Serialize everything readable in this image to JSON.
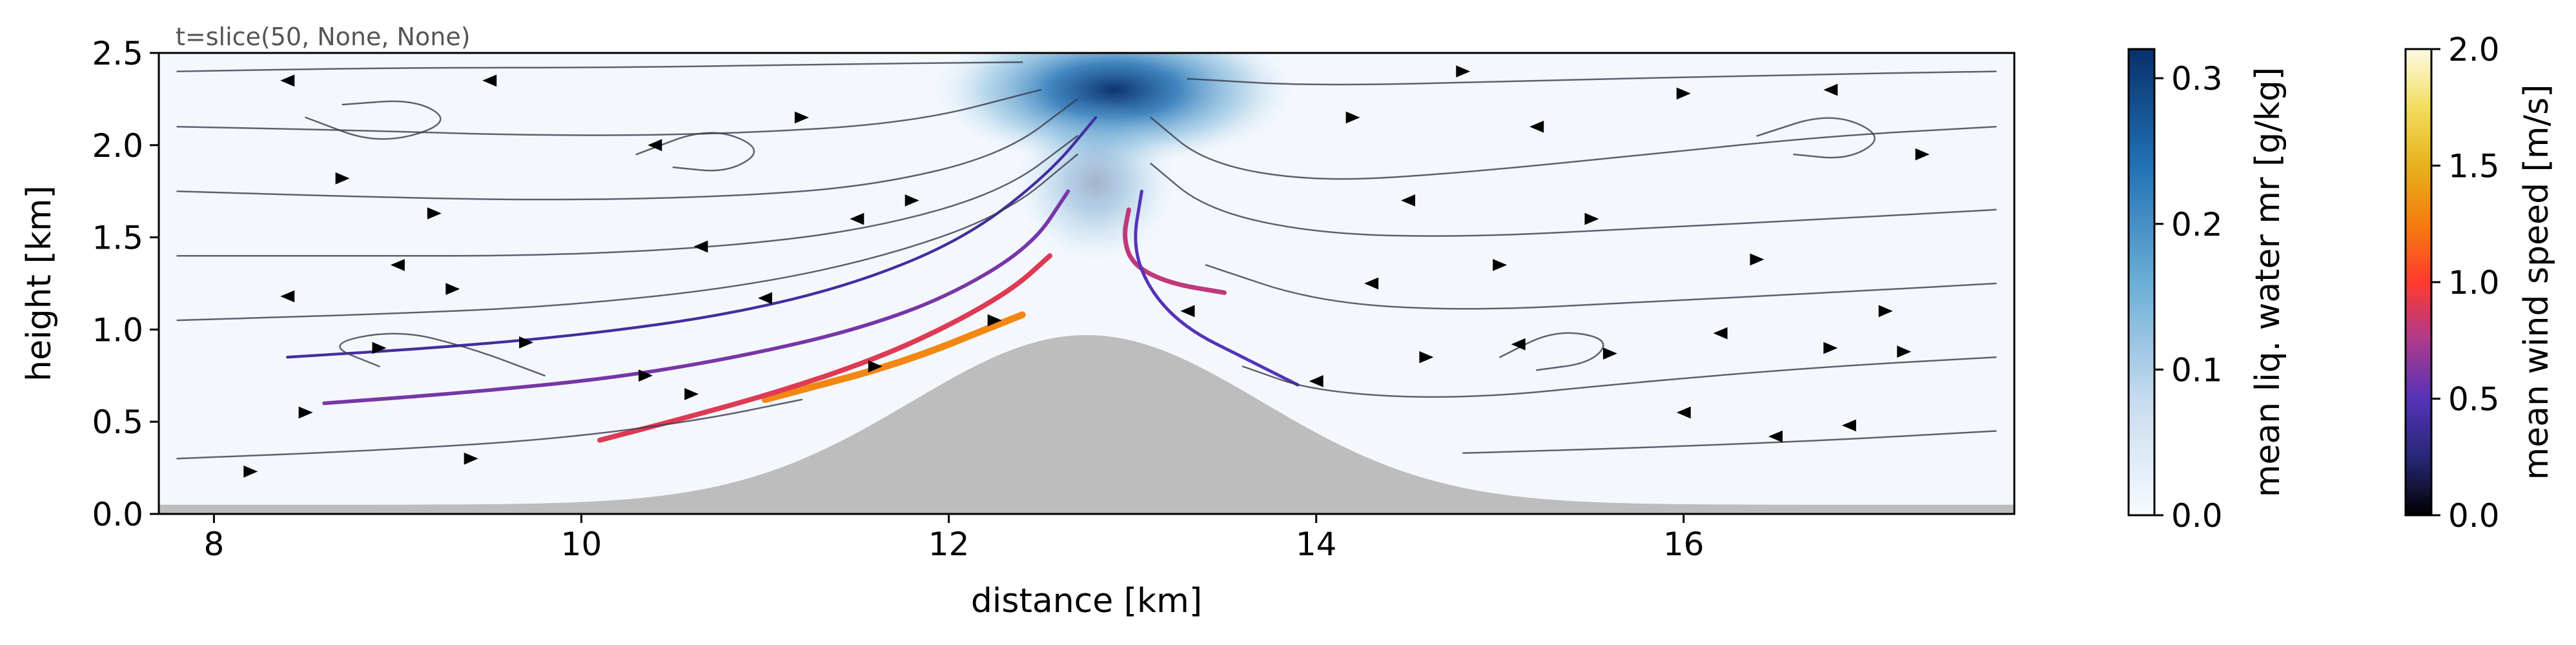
{
  "chart_data": {
    "type": "streamplot",
    "annotation": "t=slice(50, None, None)",
    "xlabel": "distance [km]",
    "ylabel": "height [km]",
    "xlim": [
      7.7,
      17.8
    ],
    "ylim": [
      0.0,
      2.5
    ],
    "xticks": [
      8,
      10,
      12,
      14,
      16
    ],
    "xtick_labels": [
      "8",
      "10",
      "12",
      "14",
      "16"
    ],
    "yticks": [
      0.0,
      0.5,
      1.0,
      1.5,
      2.0,
      2.5
    ],
    "ytick_labels": [
      "0.0",
      "0.5",
      "1.0",
      "1.5",
      "2.0",
      "2.5"
    ],
    "terrain": {
      "color": "#bdbdbd",
      "peak_x_km": 12.75,
      "peak_height_km": 0.97,
      "halfwidth_km": 1.35,
      "base_height_km": 0.05
    },
    "cloud": {
      "colormap": "Blues",
      "center_x_km": 12.9,
      "center_y_km": 2.3,
      "max_value": 0.32
    },
    "colorbars": [
      {
        "label": "mean liq. water mr [g/kg]",
        "colormap": "Blues",
        "range": [
          0.0,
          0.32
        ],
        "ticks": [
          0.0,
          0.1,
          0.2,
          0.3
        ],
        "tick_labels": [
          "0.0",
          "0.1",
          "0.2",
          "0.3"
        ]
      },
      {
        "label": "mean wind speed [m/s]",
        "colormap": "CMRmap",
        "range": [
          0.0,
          2.0
        ],
        "ticks": [
          0.0,
          0.5,
          1.0,
          1.5,
          2.0
        ],
        "tick_labels": [
          "0.0",
          "0.5",
          "1.0",
          "1.5",
          "2.0"
        ]
      }
    ],
    "streamlines": [
      {
        "speed": 1.3,
        "points": [
          [
            11.0,
            0.62
          ],
          [
            11.3,
            0.7
          ],
          [
            11.6,
            0.78
          ],
          [
            11.9,
            0.88
          ],
          [
            12.15,
            0.98
          ],
          [
            12.4,
            1.08
          ]
        ]
      },
      {
        "speed": 0.9,
        "points": [
          [
            10.1,
            0.4
          ],
          [
            10.6,
            0.53
          ],
          [
            11.1,
            0.67
          ],
          [
            11.6,
            0.84
          ],
          [
            12.0,
            1.02
          ],
          [
            12.35,
            1.22
          ],
          [
            12.55,
            1.4
          ]
        ]
      },
      {
        "speed": 0.6,
        "points": [
          [
            8.6,
            0.6
          ],
          [
            9.4,
            0.66
          ],
          [
            10.2,
            0.74
          ],
          [
            10.9,
            0.86
          ],
          [
            11.5,
            1.0
          ],
          [
            12.0,
            1.18
          ],
          [
            12.45,
            1.45
          ],
          [
            12.65,
            1.75
          ]
        ]
      },
      {
        "speed": 0.4,
        "points": [
          [
            8.4,
            0.85
          ],
          [
            9.2,
            0.9
          ],
          [
            10.0,
            0.97
          ],
          [
            10.8,
            1.08
          ],
          [
            11.5,
            1.25
          ],
          [
            12.1,
            1.5
          ],
          [
            12.55,
            1.85
          ],
          [
            12.8,
            2.15
          ]
        ]
      },
      {
        "speed": 0.8,
        "points": [
          [
            13.5,
            1.2
          ],
          [
            13.2,
            1.25
          ],
          [
            13.0,
            1.35
          ],
          [
            12.95,
            1.5
          ],
          [
            12.98,
            1.65
          ]
        ]
      },
      {
        "speed": 0.5,
        "points": [
          [
            13.9,
            0.7
          ],
          [
            13.6,
            0.85
          ],
          [
            13.3,
            1.0
          ],
          [
            13.1,
            1.2
          ],
          [
            13.0,
            1.45
          ],
          [
            13.05,
            1.75
          ]
        ]
      },
      {
        "speed": 0.15,
        "points": [
          [
            7.8,
            1.75
          ],
          [
            8.8,
            1.72
          ],
          [
            9.8,
            1.7
          ],
          [
            10.8,
            1.72
          ],
          [
            11.6,
            1.78
          ],
          [
            12.3,
            1.95
          ],
          [
            12.7,
            2.25
          ]
        ]
      },
      {
        "speed": 0.15,
        "points": [
          [
            7.8,
            1.4
          ],
          [
            8.8,
            1.4
          ],
          [
            9.8,
            1.4
          ],
          [
            10.8,
            1.45
          ],
          [
            11.6,
            1.55
          ],
          [
            12.3,
            1.75
          ],
          [
            12.7,
            2.05
          ]
        ]
      },
      {
        "speed": 0.15,
        "points": [
          [
            7.8,
            1.05
          ],
          [
            8.8,
            1.08
          ],
          [
            9.8,
            1.12
          ],
          [
            10.8,
            1.22
          ],
          [
            11.6,
            1.38
          ],
          [
            12.3,
            1.62
          ],
          [
            12.7,
            1.95
          ]
        ]
      },
      {
        "speed": 0.15,
        "points": [
          [
            7.8,
            0.3
          ],
          [
            8.8,
            0.34
          ],
          [
            9.8,
            0.4
          ],
          [
            10.6,
            0.5
          ],
          [
            11.2,
            0.62
          ]
        ]
      },
      {
        "speed": 0.15,
        "points": [
          [
            7.8,
            2.1
          ],
          [
            8.8,
            2.08
          ],
          [
            9.8,
            2.05
          ],
          [
            10.8,
            2.06
          ],
          [
            11.8,
            2.12
          ],
          [
            12.5,
            2.3
          ]
        ]
      },
      {
        "speed": 0.15,
        "points": [
          [
            7.8,
            2.4
          ],
          [
            9.0,
            2.42
          ],
          [
            10.2,
            2.42
          ],
          [
            11.4,
            2.44
          ],
          [
            12.4,
            2.45
          ]
        ]
      },
      {
        "speed": 0.15,
        "points": [
          [
            17.7,
            2.1
          ],
          [
            16.8,
            2.05
          ],
          [
            15.8,
            1.95
          ],
          [
            14.8,
            1.85
          ],
          [
            14.0,
            1.8
          ],
          [
            13.4,
            1.9
          ],
          [
            13.1,
            2.15
          ]
        ]
      },
      {
        "speed": 0.15,
        "points": [
          [
            17.7,
            1.65
          ],
          [
            16.8,
            1.6
          ],
          [
            15.8,
            1.55
          ],
          [
            14.8,
            1.5
          ],
          [
            14.0,
            1.52
          ],
          [
            13.4,
            1.65
          ],
          [
            13.1,
            1.9
          ]
        ]
      },
      {
        "speed": 0.15,
        "points": [
          [
            17.7,
            1.25
          ],
          [
            16.8,
            1.2
          ],
          [
            15.8,
            1.15
          ],
          [
            14.8,
            1.1
          ],
          [
            14.0,
            1.15
          ],
          [
            13.4,
            1.35
          ]
        ]
      },
      {
        "speed": 0.15,
        "points": [
          [
            17.7,
            0.85
          ],
          [
            16.8,
            0.8
          ],
          [
            15.8,
            0.72
          ],
          [
            14.8,
            0.62
          ],
          [
            14.0,
            0.66
          ],
          [
            13.6,
            0.8
          ]
        ]
      },
      {
        "speed": 0.15,
        "points": [
          [
            17.7,
            0.45
          ],
          [
            16.8,
            0.4
          ],
          [
            15.8,
            0.36
          ],
          [
            14.8,
            0.33
          ]
        ]
      },
      {
        "speed": 0.15,
        "points": [
          [
            17.7,
            2.4
          ],
          [
            16.5,
            2.38
          ],
          [
            15.2,
            2.35
          ],
          [
            14.0,
            2.32
          ],
          [
            13.3,
            2.36
          ]
        ]
      },
      {
        "speed": 0.15,
        "points": [
          [
            8.5,
            2.15
          ],
          [
            8.9,
            2.0
          ],
          [
            9.3,
            2.12
          ],
          [
            9.1,
            2.25
          ],
          [
            8.7,
            2.22
          ]
        ]
      },
      {
        "speed": 0.15,
        "points": [
          [
            9.8,
            0.75
          ],
          [
            9.4,
            0.9
          ],
          [
            9.0,
            1.0
          ],
          [
            8.6,
            0.92
          ],
          [
            8.9,
            0.8
          ]
        ]
      },
      {
        "speed": 0.15,
        "points": [
          [
            15.0,
            0.85
          ],
          [
            15.3,
            1.0
          ],
          [
            15.6,
            0.95
          ],
          [
            15.5,
            0.82
          ],
          [
            15.2,
            0.78
          ]
        ]
      },
      {
        "speed": 0.15,
        "points": [
          [
            16.4,
            2.05
          ],
          [
            16.8,
            2.18
          ],
          [
            17.1,
            2.05
          ],
          [
            16.9,
            1.92
          ],
          [
            16.6,
            1.95
          ]
        ]
      },
      {
        "speed": 0.15,
        "points": [
          [
            10.3,
            1.95
          ],
          [
            10.7,
            2.1
          ],
          [
            11.0,
            1.98
          ],
          [
            10.8,
            1.85
          ],
          [
            10.5,
            1.88
          ]
        ]
      }
    ],
    "arrows": [
      {
        "x": 8.2,
        "y": 0.23,
        "dir": 1
      },
      {
        "x": 8.5,
        "y": 0.55,
        "dir": 1
      },
      {
        "x": 8.9,
        "y": 0.9,
        "dir": 1
      },
      {
        "x": 9.4,
        "y": 0.3,
        "dir": 1
      },
      {
        "x": 9.3,
        "y": 1.22,
        "dir": 1
      },
      {
        "x": 9.7,
        "y": 0.93,
        "dir": 1
      },
      {
        "x": 8.4,
        "y": 1.18,
        "dir": -1
      },
      {
        "x": 9.0,
        "y": 1.35,
        "dir": -1
      },
      {
        "x": 9.2,
        "y": 1.63,
        "dir": 1
      },
      {
        "x": 8.7,
        "y": 1.82,
        "dir": 1
      },
      {
        "x": 9.5,
        "y": 2.35,
        "dir": -1
      },
      {
        "x": 8.4,
        "y": 2.35,
        "dir": -1
      },
      {
        "x": 10.6,
        "y": 0.65,
        "dir": 1
      },
      {
        "x": 10.35,
        "y": 0.75,
        "dir": 1
      },
      {
        "x": 10.65,
        "y": 1.45,
        "dir": -1
      },
      {
        "x": 11.0,
        "y": 1.17,
        "dir": -1
      },
      {
        "x": 11.5,
        "y": 1.6,
        "dir": -1
      },
      {
        "x": 10.4,
        "y": 2.0,
        "dir": -1
      },
      {
        "x": 11.2,
        "y": 2.15,
        "dir": 1
      },
      {
        "x": 11.8,
        "y": 1.7,
        "dir": 1
      },
      {
        "x": 11.6,
        "y": 0.8,
        "dir": 1
      },
      {
        "x": 12.25,
        "y": 1.05,
        "dir": 1
      },
      {
        "x": 14.0,
        "y": 0.72,
        "dir": -1
      },
      {
        "x": 13.3,
        "y": 1.1,
        "dir": -1
      },
      {
        "x": 14.6,
        "y": 0.85,
        "dir": 1
      },
      {
        "x": 15.1,
        "y": 0.92,
        "dir": -1
      },
      {
        "x": 15.6,
        "y": 0.87,
        "dir": 1
      },
      {
        "x": 16.2,
        "y": 0.98,
        "dir": -1
      },
      {
        "x": 16.8,
        "y": 0.9,
        "dir": 1
      },
      {
        "x": 17.2,
        "y": 0.88,
        "dir": 1
      },
      {
        "x": 16.0,
        "y": 0.55,
        "dir": -1
      },
      {
        "x": 16.5,
        "y": 0.42,
        "dir": -1
      },
      {
        "x": 16.9,
        "y": 0.48,
        "dir": -1
      },
      {
        "x": 14.5,
        "y": 1.7,
        "dir": -1
      },
      {
        "x": 15.5,
        "y": 1.6,
        "dir": 1
      },
      {
        "x": 16.4,
        "y": 1.38,
        "dir": 1
      },
      {
        "x": 17.1,
        "y": 1.1,
        "dir": 1
      },
      {
        "x": 14.2,
        "y": 2.15,
        "dir": 1
      },
      {
        "x": 15.2,
        "y": 2.1,
        "dir": -1
      },
      {
        "x": 16.0,
        "y": 2.28,
        "dir": 1
      },
      {
        "x": 16.8,
        "y": 2.3,
        "dir": -1
      },
      {
        "x": 14.8,
        "y": 2.4,
        "dir": 1
      },
      {
        "x": 17.3,
        "y": 1.95,
        "dir": 1
      },
      {
        "x": 15.0,
        "y": 1.35,
        "dir": 1
      },
      {
        "x": 14.3,
        "y": 1.25,
        "dir": -1
      }
    ]
  }
}
